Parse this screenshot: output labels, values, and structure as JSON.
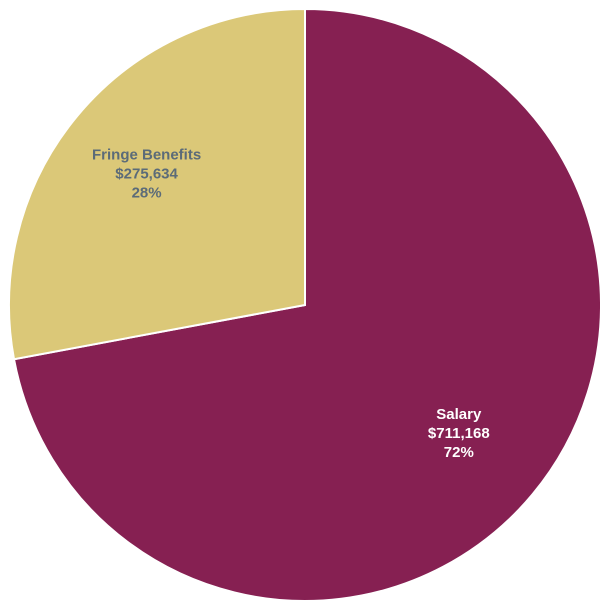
{
  "chart_data": {
    "type": "pie",
    "title": "",
    "start_angle_deg": 0,
    "direction": "clockwise",
    "slices": [
      {
        "name": "Salary",
        "value": 711168,
        "value_label": "$711,168",
        "percent": 72,
        "percent_label": "72%",
        "color": "#862052",
        "label_color": "#ffffff"
      },
      {
        "name": "Fringe Benefits",
        "value": 275634,
        "value_label": "$275,634",
        "percent": 28,
        "percent_label": "28%",
        "color": "#DBC878",
        "label_color": "#5B6B78"
      }
    ],
    "legend": "none"
  }
}
